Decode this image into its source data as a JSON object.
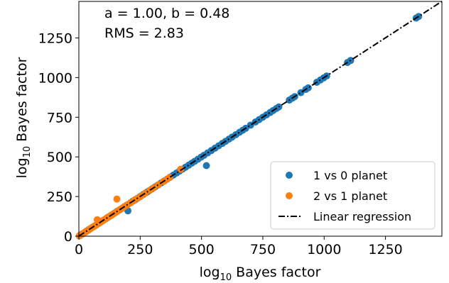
{
  "chart_data": {
    "type": "scatter",
    "xlabel": {
      "prefix": "log",
      "sub": "10",
      "rest": " Bayes factor"
    },
    "ylabel": {
      "prefix": "log",
      "sub": "10",
      "rest": " Bayes factor"
    },
    "xlim": [
      0,
      1480
    ],
    "ylim": [
      0,
      1480
    ],
    "xticks": [
      0,
      250,
      500,
      750,
      1000,
      1250
    ],
    "yticks": [
      0,
      250,
      500,
      750,
      1000,
      1250
    ],
    "annotations": [
      "a = 1.00, b = 0.48",
      "RMS = 2.83"
    ],
    "grid": false,
    "legend_position": "lower-right",
    "series": [
      {
        "name": "1 vs 0 planet",
        "color": "#1f77b4",
        "points": [
          [
            3,
            3
          ],
          [
            8,
            8
          ],
          [
            12,
            13
          ],
          [
            18,
            17
          ],
          [
            25,
            25
          ],
          [
            32,
            33
          ],
          [
            40,
            40
          ],
          [
            48,
            48
          ],
          [
            55,
            56
          ],
          [
            62,
            62
          ],
          [
            70,
            70
          ],
          [
            78,
            79
          ],
          [
            85,
            85
          ],
          [
            92,
            93
          ],
          [
            100,
            100
          ],
          [
            110,
            110
          ],
          [
            118,
            119
          ],
          [
            125,
            125
          ],
          [
            135,
            135
          ],
          [
            145,
            145
          ],
          [
            155,
            156
          ],
          [
            165,
            165
          ],
          [
            175,
            175
          ],
          [
            185,
            185
          ],
          [
            195,
            195
          ],
          [
            200,
            160
          ],
          [
            210,
            210
          ],
          [
            220,
            221
          ],
          [
            230,
            230
          ],
          [
            240,
            240
          ],
          [
            250,
            250
          ],
          [
            262,
            262
          ],
          [
            275,
            275
          ],
          [
            285,
            285
          ],
          [
            298,
            298
          ],
          [
            310,
            310
          ],
          [
            322,
            322
          ],
          [
            335,
            335
          ],
          [
            348,
            348
          ],
          [
            360,
            360
          ],
          [
            372,
            372
          ],
          [
            385,
            385
          ],
          [
            398,
            398
          ],
          [
            410,
            410
          ],
          [
            422,
            422
          ],
          [
            435,
            435
          ],
          [
            448,
            448
          ],
          [
            460,
            460
          ],
          [
            472,
            472
          ],
          [
            485,
            485
          ],
          [
            498,
            498
          ],
          [
            510,
            510
          ],
          [
            520,
            445
          ],
          [
            525,
            525
          ],
          [
            540,
            540
          ],
          [
            555,
            555
          ],
          [
            570,
            570
          ],
          [
            585,
            585
          ],
          [
            598,
            598
          ],
          [
            612,
            612
          ],
          [
            625,
            625
          ],
          [
            640,
            640
          ],
          [
            655,
            655
          ],
          [
            668,
            668
          ],
          [
            680,
            680
          ],
          [
            700,
            700
          ],
          [
            720,
            720
          ],
          [
            735,
            735
          ],
          [
            750,
            750
          ],
          [
            765,
            765
          ],
          [
            780,
            780
          ],
          [
            792,
            792
          ],
          [
            805,
            805
          ],
          [
            815,
            815
          ],
          [
            858,
            858
          ],
          [
            870,
            870
          ],
          [
            880,
            880
          ],
          [
            905,
            905
          ],
          [
            925,
            925
          ],
          [
            935,
            935
          ],
          [
            970,
            970
          ],
          [
            985,
            985
          ],
          [
            998,
            998
          ],
          [
            1010,
            1010
          ],
          [
            1095,
            1095
          ],
          [
            1108,
            1108
          ],
          [
            1375,
            1375
          ],
          [
            1385,
            1385
          ]
        ]
      },
      {
        "name": "2 vs 1 planet",
        "color": "#ff7f0e",
        "points": [
          [
            2,
            2
          ],
          [
            6,
            6
          ],
          [
            10,
            10
          ],
          [
            15,
            15
          ],
          [
            20,
            20
          ],
          [
            25,
            25
          ],
          [
            30,
            30
          ],
          [
            35,
            35
          ],
          [
            40,
            40
          ],
          [
            45,
            46
          ],
          [
            50,
            50
          ],
          [
            55,
            55
          ],
          [
            60,
            60
          ],
          [
            65,
            65
          ],
          [
            70,
            70
          ],
          [
            75,
            104
          ],
          [
            80,
            80
          ],
          [
            85,
            85
          ],
          [
            90,
            90
          ],
          [
            95,
            95
          ],
          [
            100,
            100
          ],
          [
            105,
            105
          ],
          [
            110,
            110
          ],
          [
            115,
            115
          ],
          [
            120,
            120
          ],
          [
            125,
            125
          ],
          [
            130,
            130
          ],
          [
            135,
            135
          ],
          [
            140,
            140
          ],
          [
            145,
            145
          ],
          [
            150,
            150
          ],
          [
            155,
            234
          ],
          [
            160,
            160
          ],
          [
            170,
            170
          ],
          [
            180,
            180
          ],
          [
            190,
            190
          ],
          [
            200,
            200
          ],
          [
            210,
            210
          ],
          [
            225,
            225
          ],
          [
            240,
            240
          ],
          [
            255,
            255
          ],
          [
            270,
            270
          ],
          [
            290,
            290
          ],
          [
            305,
            305
          ],
          [
            325,
            325
          ],
          [
            345,
            345
          ],
          [
            360,
            360
          ],
          [
            370,
            370
          ],
          [
            415,
            422
          ]
        ]
      },
      {
        "name": "Linear regression",
        "color": "#000000",
        "style": "dash-dot",
        "x": [
          0,
          1480
        ],
        "y": [
          0.48,
          1480.48
        ]
      }
    ]
  }
}
